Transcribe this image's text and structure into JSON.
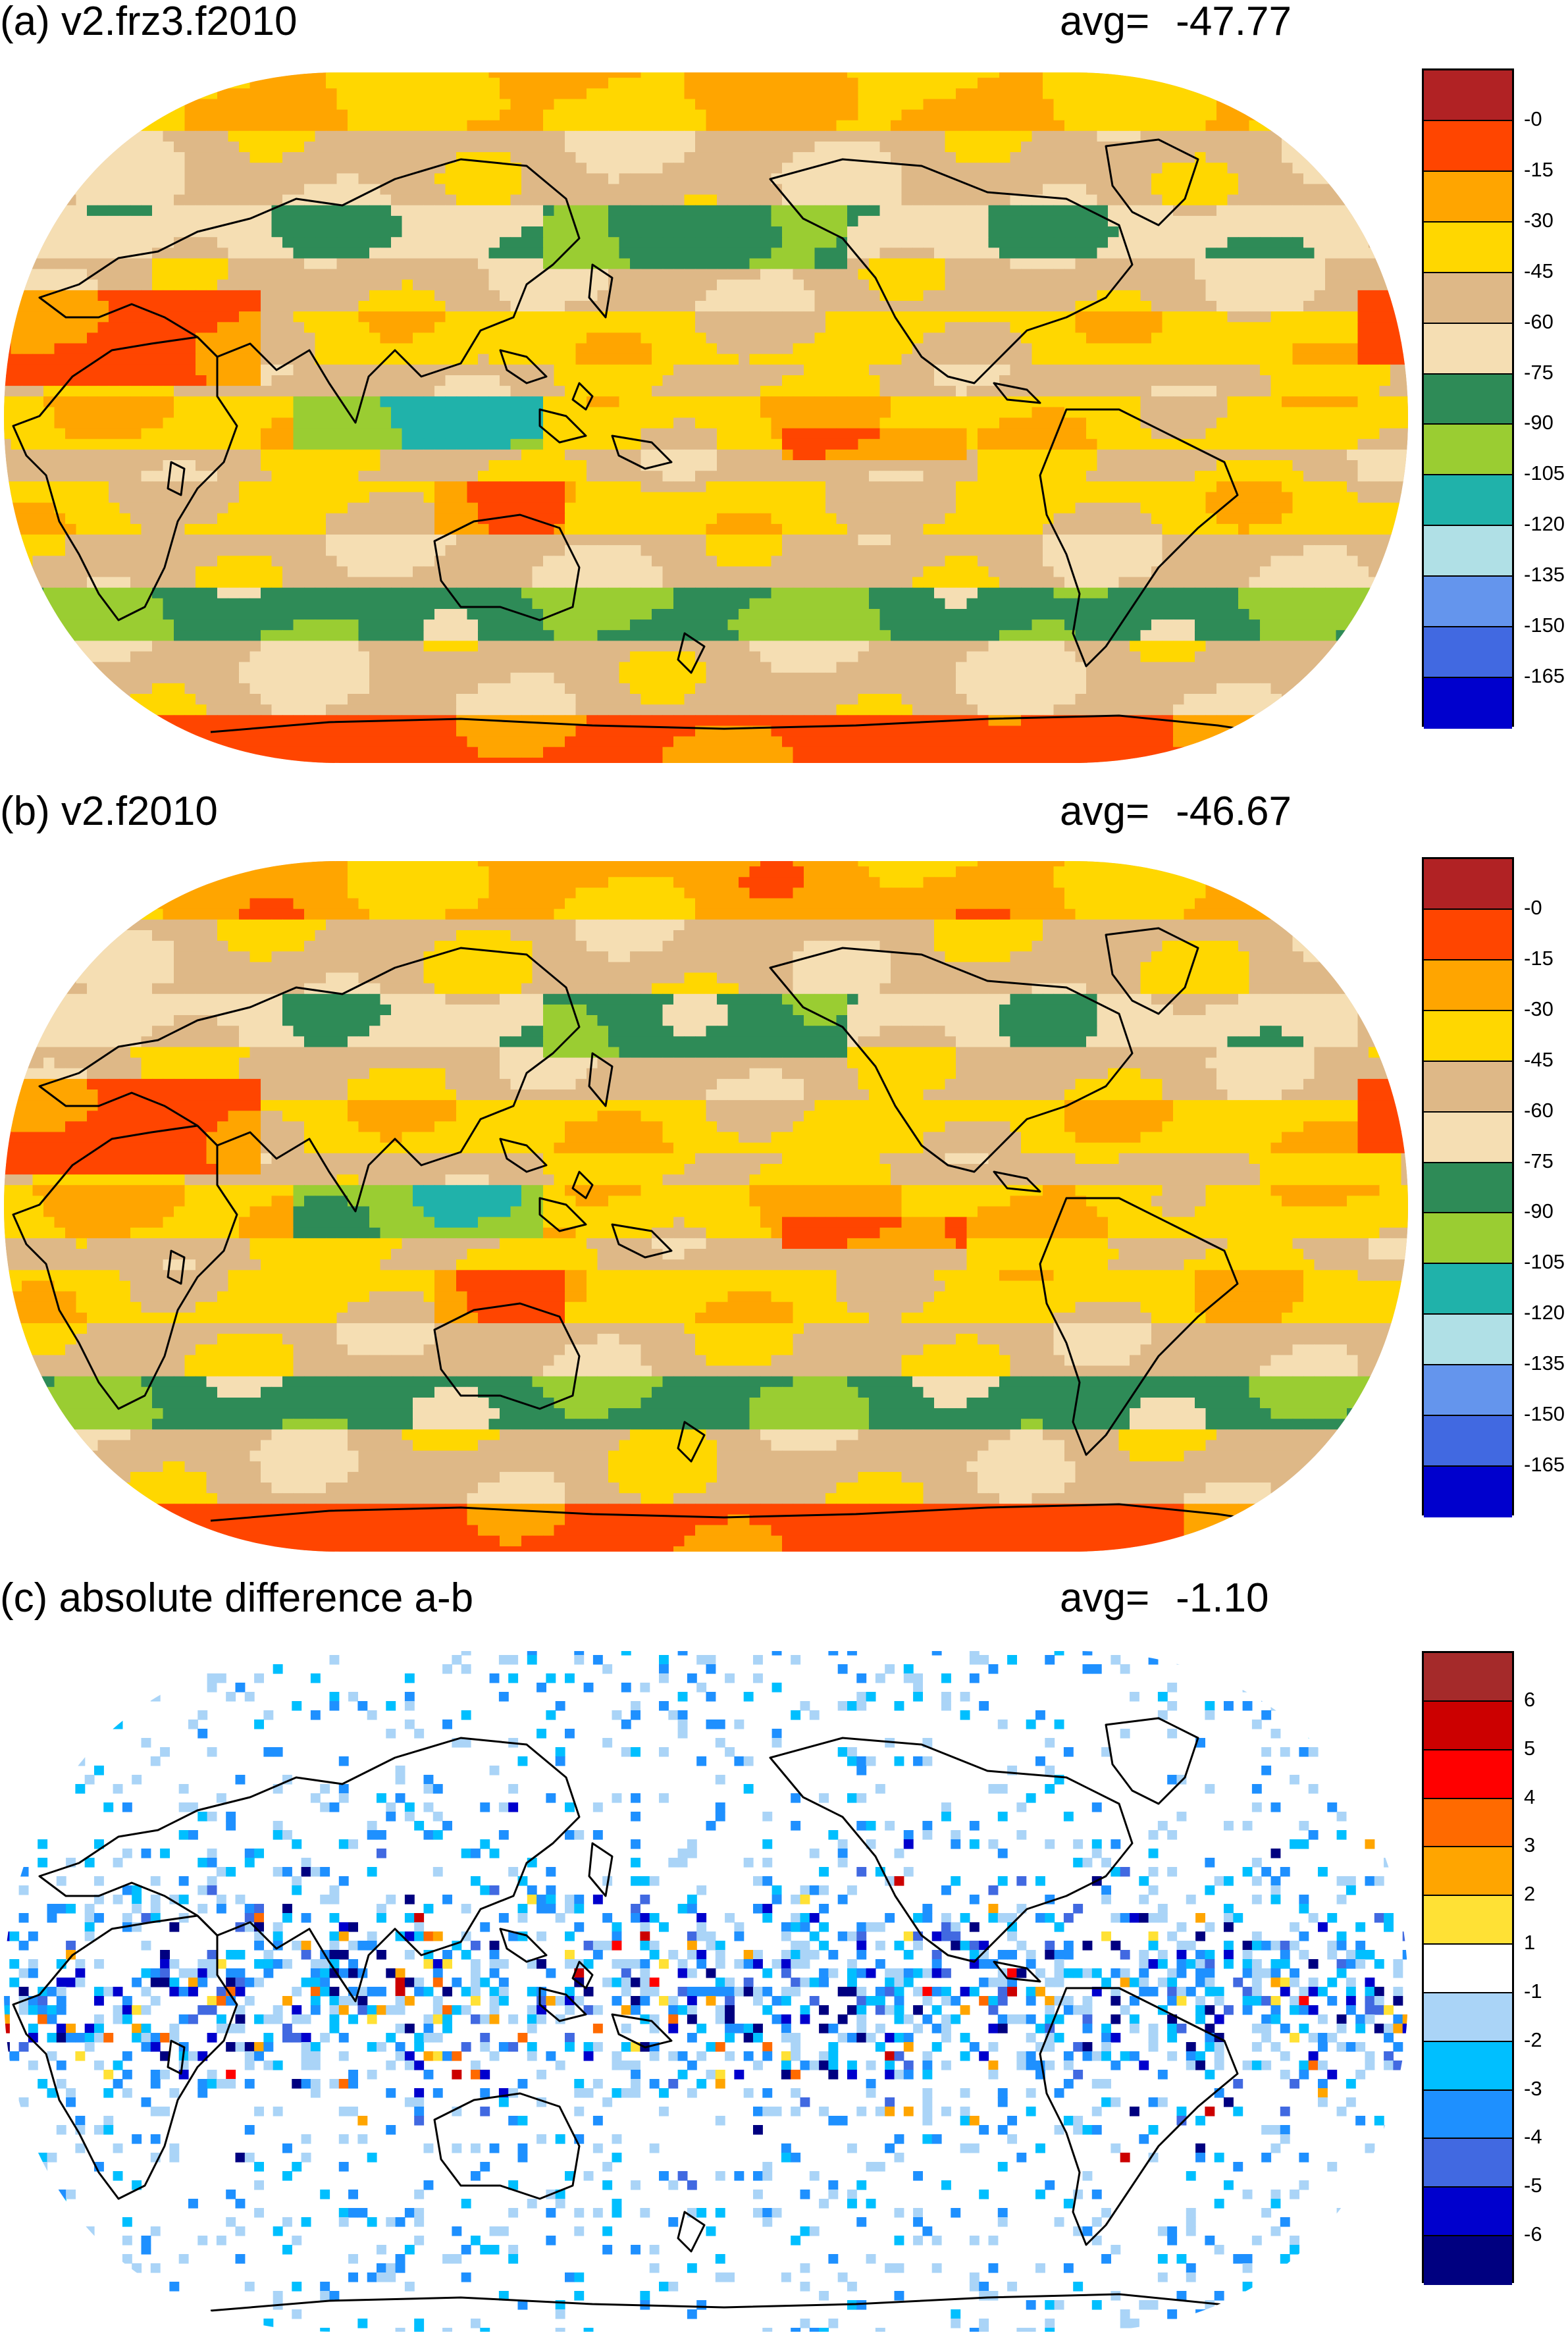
{
  "panels": [
    {
      "id": "a",
      "title": "(a) v2.frz3.f2010",
      "avg_label": "avg=",
      "avg_value": "-47.77",
      "colors": [
        "#b12224",
        "#ff4500",
        "#ffa500",
        "#ffd700",
        "#deb887",
        "#f5deb3",
        "#2e8b57",
        "#9acd32",
        "#20b2aa",
        "#b0e0e6",
        "#6495ed",
        "#4169e1",
        "#0000cd"
      ],
      "ticks": [
        "-0",
        "-15",
        "-30",
        "-45",
        "-60",
        "-75",
        "-90",
        "-105",
        "-120",
        "-135",
        "-150",
        "-165"
      ]
    },
    {
      "id": "b",
      "title": "(b) v2.f2010",
      "avg_label": "avg=",
      "avg_value": "-46.67",
      "colors": [
        "#b12224",
        "#ff4500",
        "#ffa500",
        "#ffd700",
        "#deb887",
        "#f5deb3",
        "#2e8b57",
        "#9acd32",
        "#20b2aa",
        "#b0e0e6",
        "#6495ed",
        "#4169e1",
        "#0000cd"
      ],
      "ticks": [
        "-0",
        "-15",
        "-30",
        "-45",
        "-60",
        "-75",
        "-90",
        "-105",
        "-120",
        "-135",
        "-150",
        "-165"
      ]
    },
    {
      "id": "c",
      "title": "(c) absolute difference a-b",
      "avg_label": "avg=",
      "avg_value": "-1.10",
      "colors": [
        "#a52a2a",
        "#cc0000",
        "#ff0000",
        "#ff6a00",
        "#ffa500",
        "#ffe135",
        "#ffffff",
        "#aad4f7",
        "#00bfff",
        "#1e90ff",
        "#4169e1",
        "#0000cd",
        "#000080"
      ],
      "ticks": [
        "6",
        "5",
        "4",
        "3",
        "2",
        "1",
        "-1",
        "-2",
        "-3",
        "-4",
        "-5",
        "-6"
      ]
    }
  ]
}
